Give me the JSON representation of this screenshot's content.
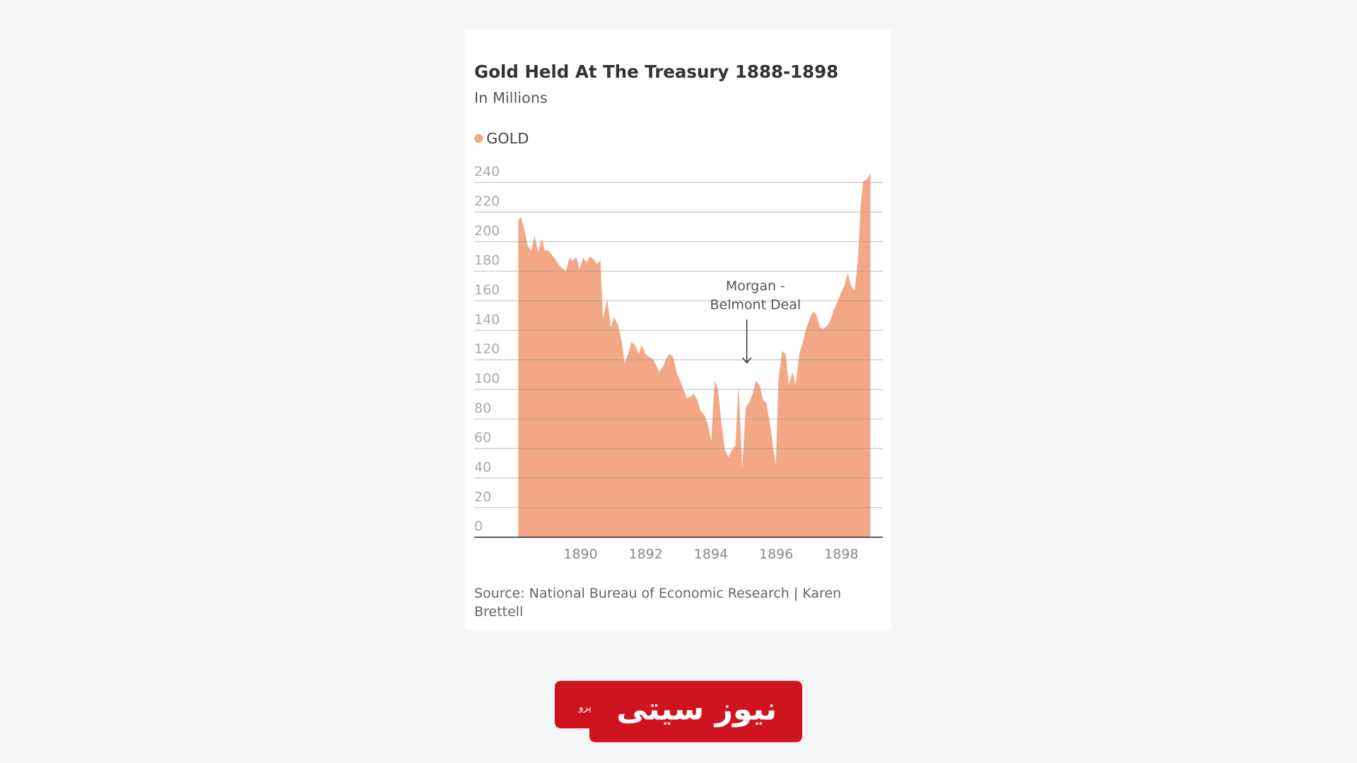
{
  "chart_data": {
    "type": "area",
    "title": "Gold Held At The Treasury 1888-1898",
    "subtitle": "In Millions",
    "source": "Source: National Bureau of Economic Research  | Karen Brettell",
    "logo": {
      "text": "نیوز سیتی",
      "small": "پرو"
    },
    "annotation": {
      "lines": [
        "Morgan -",
        "Belmont Deal"
      ],
      "x": 1895.1,
      "y": 118
    },
    "x": [
      1888.09,
      1888.17,
      1888.28,
      1888.38,
      1888.49,
      1888.59,
      1888.7,
      1888.81,
      1888.91,
      1889.02,
      1889.12,
      1889.23,
      1889.34,
      1889.44,
      1889.55,
      1889.66,
      1889.76,
      1889.87,
      1889.97,
      1890.08,
      1890.19,
      1890.29,
      1890.4,
      1890.5,
      1890.61,
      1890.69,
      1890.82,
      1890.93,
      1891.03,
      1891.14,
      1891.25,
      1891.35,
      1891.46,
      1891.56,
      1891.67,
      1891.78,
      1891.88,
      1891.99,
      1892.1,
      1892.2,
      1892.31,
      1892.41,
      1892.52,
      1892.63,
      1892.73,
      1892.84,
      1892.94,
      1893.05,
      1893.16,
      1893.26,
      1893.37,
      1893.47,
      1893.58,
      1893.69,
      1893.79,
      1893.9,
      1894.01,
      1894.11,
      1894.22,
      1894.32,
      1894.43,
      1894.54,
      1894.64,
      1894.75,
      1894.85,
      1894.96,
      1895.07,
      1895.17,
      1895.28,
      1895.38,
      1895.49,
      1895.6,
      1895.7,
      1895.81,
      1895.92,
      1895.99,
      1896.07,
      1896.18,
      1896.29,
      1896.39,
      1896.5,
      1896.6,
      1896.71,
      1896.82,
      1896.92,
      1897.03,
      1897.14,
      1897.24,
      1897.35,
      1897.45,
      1897.56,
      1897.67,
      1897.77,
      1897.88,
      1897.98,
      1898.09,
      1898.2,
      1898.3,
      1898.41,
      1898.51,
      1898.59,
      1898.67,
      1898.78,
      1898.89
    ],
    "series": [
      {
        "name": "GOLD",
        "color": "#f2a885",
        "values": [
          214,
          217,
          208,
          197,
          194,
          204,
          193,
          202,
          194,
          194,
          191,
          188,
          184,
          182,
          180,
          189,
          187,
          190,
          181,
          189,
          186,
          190,
          188,
          185,
          187,
          148,
          161,
          142,
          149,
          144,
          134,
          118,
          124,
          132,
          130,
          124,
          130,
          124,
          122,
          121,
          117,
          112,
          115,
          121,
          124,
          122,
          112,
          106,
          100,
          94,
          95,
          97,
          93,
          85,
          83,
          77,
          65,
          106,
          100,
          77,
          59,
          54,
          59,
          62,
          103,
          47,
          88,
          91,
          97,
          106,
          103,
          93,
          91,
          77,
          59,
          49,
          106,
          126,
          124,
          103,
          112,
          103,
          124,
          132,
          141,
          148,
          153,
          150,
          142,
          141,
          143,
          147,
          154,
          159,
          165,
          170,
          179,
          170,
          167,
          188,
          223,
          241,
          242,
          246
        ]
      }
    ],
    "xlim": [
      1886.74,
      1899.27
    ],
    "xticks": [
      1890,
      1892,
      1894,
      1896,
      1898
    ],
    "ylim": [
      0,
      240
    ],
    "yticks": [
      0,
      20,
      40,
      60,
      80,
      100,
      120,
      140,
      160,
      180,
      200,
      220,
      240
    ],
    "grid": true
  }
}
